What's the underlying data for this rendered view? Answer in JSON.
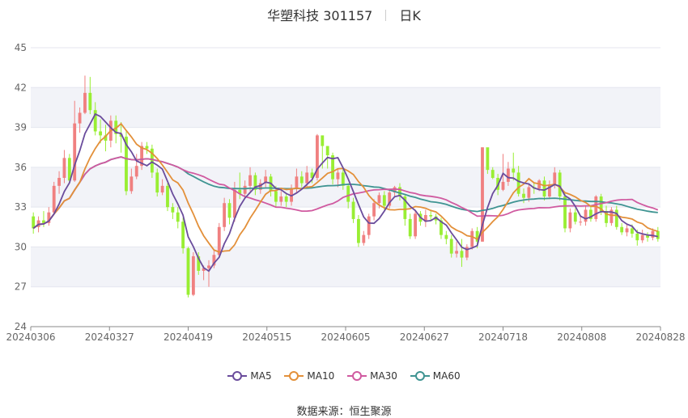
{
  "header": {
    "title": "华塑科技 301157",
    "period": "日K"
  },
  "source": {
    "label": "数据来源：",
    "name": "恒生聚源"
  },
  "colors": {
    "up": "#f08080",
    "down": "#99ee33",
    "ma5": "#6a4c9c",
    "ma10": "#e3903a",
    "ma30": "#d05aa0",
    "ma60": "#3f9492",
    "band": "#f2f3f8",
    "grid": "#e4e6ef"
  },
  "chart_data": {
    "type": "candlestick",
    "title": "华塑科技 301157",
    "ylim": [
      24,
      45
    ],
    "yticks": [
      24,
      27,
      30,
      33,
      36,
      39,
      42,
      45
    ],
    "xtick_labels": [
      "20240306",
      "20240327",
      "20240419",
      "20240515",
      "20240605",
      "20240627",
      "20240718",
      "20240808",
      "20240828"
    ],
    "legend": [
      "MA5",
      "MA10",
      "MA30",
      "MA60"
    ],
    "legend_position": "bottom",
    "grid": true,
    "candles": [
      [
        32.3,
        31.4,
        32.6,
        31.0
      ],
      [
        31.5,
        32.0,
        32.3,
        31.1
      ],
      [
        32.0,
        31.8,
        32.7,
        31.5
      ],
      [
        31.8,
        32.6,
        33.0,
        31.6
      ],
      [
        32.6,
        34.6,
        34.9,
        32.4
      ],
      [
        34.6,
        35.2,
        35.7,
        34.0
      ],
      [
        35.2,
        36.7,
        37.3,
        34.8
      ],
      [
        36.7,
        35.0,
        37.0,
        34.8
      ],
      [
        35.0,
        39.3,
        41.0,
        34.9
      ],
      [
        39.3,
        40.1,
        40.5,
        38.6
      ],
      [
        40.1,
        41.6,
        42.9,
        40.0
      ],
      [
        41.6,
        40.3,
        42.8,
        40.0
      ],
      [
        40.3,
        38.7,
        40.9,
        38.4
      ],
      [
        38.7,
        38.4,
        39.6,
        37.8
      ],
      [
        38.4,
        38.0,
        39.2,
        37.2
      ],
      [
        38.0,
        39.5,
        39.9,
        37.5
      ],
      [
        39.5,
        38.5,
        39.9,
        37.8
      ],
      [
        38.5,
        38.3,
        39.4,
        37.1
      ],
      [
        38.3,
        34.2,
        38.7,
        33.9
      ],
      [
        34.2,
        35.3,
        35.9,
        34.0
      ],
      [
        35.3,
        36.1,
        37.0,
        35.1
      ],
      [
        36.1,
        37.6,
        37.9,
        35.8
      ],
      [
        37.6,
        37.4,
        37.9,
        37.0
      ],
      [
        37.4,
        35.6,
        37.7,
        35.2
      ],
      [
        35.6,
        34.1,
        35.9,
        33.8
      ],
      [
        34.1,
        34.6,
        35.1,
        33.9
      ],
      [
        34.6,
        33.0,
        34.8,
        32.7
      ],
      [
        33.0,
        32.6,
        33.3,
        32.1
      ],
      [
        32.6,
        31.9,
        33.0,
        31.4
      ],
      [
        31.9,
        29.9,
        32.2,
        29.5
      ],
      [
        29.9,
        26.4,
        30.0,
        26.2
      ],
      [
        26.4,
        29.3,
        29.6,
        26.3
      ],
      [
        29.3,
        28.2,
        29.6,
        27.9
      ],
      [
        28.2,
        28.4,
        28.6,
        27.5
      ],
      [
        28.4,
        28.6,
        29.0,
        27.0
      ],
      [
        28.6,
        29.4,
        29.8,
        28.4
      ],
      [
        29.4,
        31.5,
        31.8,
        29.2
      ],
      [
        31.5,
        33.3,
        33.7,
        31.2
      ],
      [
        33.3,
        32.2,
        33.6,
        31.7
      ],
      [
        32.2,
        34.3,
        34.9,
        31.9
      ],
      [
        34.3,
        34.0,
        35.6,
        33.6
      ],
      [
        34.0,
        34.6,
        35.0,
        33.7
      ],
      [
        34.6,
        35.4,
        36.0,
        34.2
      ],
      [
        35.4,
        34.3,
        35.6,
        33.9
      ],
      [
        34.3,
        34.8,
        35.1,
        34.0
      ],
      [
        34.8,
        35.3,
        35.8,
        34.5
      ],
      [
        35.3,
        34.2,
        35.5,
        33.8
      ],
      [
        34.2,
        33.4,
        34.6,
        33.0
      ],
      [
        33.4,
        33.8,
        34.2,
        33.1
      ],
      [
        33.8,
        33.4,
        34.0,
        33.0
      ],
      [
        33.4,
        34.4,
        34.7,
        33.1
      ],
      [
        34.4,
        35.3,
        35.9,
        34.1
      ],
      [
        35.3,
        34.8,
        35.7,
        34.5
      ],
      [
        34.8,
        35.6,
        36.1,
        34.4
      ],
      [
        35.6,
        35.2,
        35.9,
        34.8
      ],
      [
        35.2,
        38.4,
        38.5,
        35.0
      ],
      [
        38.4,
        37.6,
        38.2,
        35.9
      ],
      [
        37.6,
        36.9,
        37.5,
        35.9
      ],
      [
        36.9,
        35.1,
        37.1,
        34.7
      ],
      [
        35.1,
        35.6,
        35.9,
        34.5
      ],
      [
        35.6,
        34.6,
        36.0,
        34.3
      ],
      [
        34.6,
        33.4,
        34.8,
        32.9
      ],
      [
        33.4,
        32.1,
        33.7,
        31.8
      ],
      [
        32.1,
        30.3,
        32.4,
        30.0
      ],
      [
        30.3,
        30.9,
        31.2,
        30.1
      ],
      [
        30.9,
        32.3,
        32.5,
        30.6
      ],
      [
        32.3,
        33.3,
        33.6,
        32.0
      ],
      [
        33.3,
        33.9,
        34.1,
        32.9
      ],
      [
        33.9,
        33.1,
        34.2,
        32.8
      ],
      [
        33.1,
        34.1,
        34.3,
        32.9
      ],
      [
        34.1,
        34.5,
        34.6,
        33.8
      ],
      [
        34.5,
        33.8,
        34.8,
        33.5
      ],
      [
        33.8,
        32.1,
        34.0,
        31.6
      ],
      [
        32.1,
        30.8,
        32.5,
        30.6
      ],
      [
        30.8,
        32.5,
        32.8,
        30.6
      ],
      [
        32.5,
        31.9,
        32.7,
        31.6
      ],
      [
        31.9,
        32.4,
        32.8,
        31.5
      ],
      [
        32.4,
        32.3,
        32.8,
        32.0
      ],
      [
        32.3,
        32.0,
        32.5,
        31.7
      ],
      [
        32.0,
        30.9,
        32.2,
        30.6
      ],
      [
        30.9,
        30.6,
        31.2,
        30.2
      ],
      [
        30.6,
        29.5,
        30.9,
        29.2
      ],
      [
        29.5,
        29.7,
        30.4,
        29.2
      ],
      [
        29.7,
        29.2,
        30.6,
        28.5
      ],
      [
        29.2,
        30.0,
        30.2,
        29.0
      ],
      [
        30.0,
        31.2,
        31.4,
        29.8
      ],
      [
        31.2,
        30.4,
        31.5,
        29.9
      ],
      [
        30.4,
        37.5,
        37.5,
        30.4
      ],
      [
        37.5,
        35.8,
        37.1,
        35.5
      ],
      [
        35.8,
        35.2,
        36.0,
        35.1
      ],
      [
        35.2,
        34.3,
        35.5,
        33.9
      ],
      [
        34.3,
        34.9,
        37.0,
        34.2
      ],
      [
        34.9,
        35.9,
        36.4,
        34.6
      ],
      [
        35.9,
        35.6,
        37.1,
        35.0
      ],
      [
        35.6,
        34.0,
        36.1,
        33.8
      ],
      [
        34.0,
        33.7,
        34.4,
        33.3
      ],
      [
        33.7,
        34.5,
        34.8,
        33.4
      ],
      [
        34.5,
        34.4,
        34.8,
        34.0
      ],
      [
        34.4,
        35.0,
        35.1,
        34.2
      ],
      [
        35.0,
        33.8,
        35.3,
        33.5
      ],
      [
        33.8,
        34.7,
        35.0,
        33.6
      ],
      [
        34.7,
        35.6,
        36.0,
        34.4
      ],
      [
        35.6,
        33.8,
        35.8,
        33.5
      ],
      [
        33.8,
        31.4,
        34.1,
        31.1
      ],
      [
        31.4,
        32.6,
        32.9,
        31.1
      ],
      [
        32.6,
        31.9,
        32.9,
        31.7
      ],
      [
        31.9,
        31.9,
        32.3,
        31.6
      ],
      [
        31.9,
        32.8,
        33.1,
        31.6
      ],
      [
        32.8,
        32.1,
        33.1,
        31.9
      ],
      [
        32.1,
        33.8,
        33.9,
        31.9
      ],
      [
        33.8,
        32.7,
        34.0,
        32.4
      ],
      [
        32.7,
        31.8,
        33.1,
        31.5
      ],
      [
        31.8,
        32.8,
        33.0,
        31.6
      ],
      [
        32.8,
        31.5,
        33.1,
        31.3
      ],
      [
        31.5,
        31.1,
        31.8,
        30.9
      ],
      [
        31.1,
        31.4,
        31.7,
        30.8
      ],
      [
        31.4,
        31.0,
        31.7,
        30.7
      ],
      [
        31.0,
        30.5,
        31.3,
        30.1
      ],
      [
        30.5,
        30.9,
        31.3,
        30.3
      ],
      [
        30.9,
        30.7,
        31.1,
        30.4
      ],
      [
        30.7,
        31.2,
        31.4,
        30.5
      ],
      [
        31.2,
        30.6,
        31.5,
        30.4
      ]
    ]
  }
}
